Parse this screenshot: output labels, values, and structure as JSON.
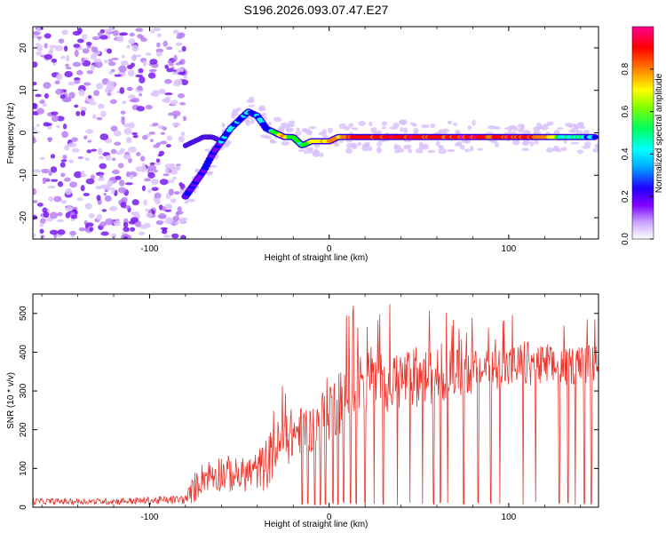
{
  "figure": {
    "title": "S196.2026.093.07.47.E27"
  },
  "chart_data": [
    {
      "type": "heatmap",
      "name": "spectrogram",
      "title": "S196.2026.093.07.47.E27",
      "xlabel": "Height of straight line (km)",
      "ylabel": "Frequency (Hz)",
      "xlim": [
        -165,
        150
      ],
      "ylim": [
        -25,
        25
      ],
      "xticks": [
        -100,
        0,
        100
      ],
      "xtick_labels": [
        "-100",
        "0",
        "100"
      ],
      "yticks": [
        -20,
        -10,
        0,
        10,
        20
      ],
      "ytick_labels": [
        "-20",
        "-10",
        "0",
        "10",
        "20"
      ],
      "colorbar": {
        "label": "Normalized spectral amplitude",
        "range": [
          0,
          1
        ],
        "ticks": [
          0.0,
          0.2,
          0.4,
          0.6,
          0.8
        ],
        "tick_labels": [
          "0.0",
          "0.2",
          "0.4",
          "0.6",
          "0.8"
        ],
        "colormap": [
          "#ffffff",
          "#d9b3ff",
          "#8000ff",
          "#0000ff",
          "#00ffff",
          "#00ff00",
          "#ffff00",
          "#ff8000",
          "#ff0000",
          "#ff00aa"
        ]
      },
      "noise_region_x": [
        -165,
        -80
      ],
      "signal_track": {
        "x": [
          -80,
          -75,
          -70,
          -65,
          -60,
          -55,
          -50,
          -45,
          -40,
          -35,
          -30,
          -25,
          -20,
          -15,
          -10,
          -5,
          0,
          5,
          10,
          20,
          40,
          60,
          80,
          90,
          100,
          110,
          120,
          130,
          140,
          148
        ],
        "y": [
          -15,
          -12,
          -9,
          -5,
          -2,
          1,
          3,
          5,
          4,
          1,
          0,
          -1,
          -1,
          -3,
          -2,
          -2,
          -2,
          -1,
          -1,
          -1,
          -1,
          -1,
          -1,
          -1,
          -1,
          -1,
          -1,
          -1,
          -1,
          -1
        ],
        "amplitude": [
          0.2,
          0.25,
          0.3,
          0.3,
          0.35,
          0.35,
          0.4,
          0.4,
          0.35,
          0.35,
          0.6,
          0.7,
          0.5,
          0.5,
          0.6,
          0.7,
          0.7,
          0.75,
          0.8,
          0.9,
          0.9,
          0.85,
          0.9,
          0.85,
          0.9,
          0.85,
          0.8,
          0.5,
          0.45,
          0.4
        ]
      },
      "secondary_track": {
        "x": [
          -80,
          -75,
          -70,
          -65,
          -60
        ],
        "y": [
          -3,
          -2,
          -1,
          -1,
          -2
        ]
      }
    },
    {
      "type": "line",
      "name": "snr",
      "title": "",
      "xlabel": "Height of straight line (km)",
      "ylabel": "SNR (10 * v/v)",
      "xlim": [
        -165,
        150
      ],
      "ylim": [
        0,
        550
      ],
      "xticks": [
        -100,
        0,
        100
      ],
      "xtick_labels": [
        "-100",
        "0",
        "100"
      ],
      "yticks": [
        0,
        100,
        200,
        300,
        400,
        500
      ],
      "ytick_labels": [
        "0",
        "100",
        "200",
        "300",
        "400",
        "500"
      ],
      "line_color": "#e8352d",
      "envelope": {
        "x": [
          -165,
          -130,
          -100,
          -80,
          -75,
          -70,
          -60,
          -50,
          -40,
          -35,
          -30,
          -25,
          -20,
          -15,
          -10,
          -5,
          0,
          10,
          20,
          40,
          60,
          80,
          100,
          110,
          120,
          130,
          140,
          150
        ],
        "baseline": [
          15,
          15,
          17,
          20,
          50,
          80,
          90,
          80,
          95,
          110,
          150,
          170,
          190,
          200,
          200,
          220,
          260,
          300,
          320,
          330,
          340,
          350,
          360,
          370,
          360,
          360,
          370,
          370
        ],
        "spread": [
          8,
          8,
          10,
          12,
          40,
          40,
          50,
          45,
          50,
          70,
          70,
          70,
          70,
          60,
          60,
          70,
          90,
          100,
          90,
          80,
          70,
          60,
          60,
          60,
          60,
          50,
          50,
          50
        ]
      },
      "dropouts_x": [
        -15,
        -12,
        -8,
        -5,
        -2,
        2,
        5,
        8,
        12,
        15,
        20,
        25,
        30,
        38,
        45,
        52,
        58,
        62,
        66,
        75,
        83,
        90,
        95,
        108,
        115,
        128,
        133,
        137,
        142,
        146
      ]
    }
  ]
}
